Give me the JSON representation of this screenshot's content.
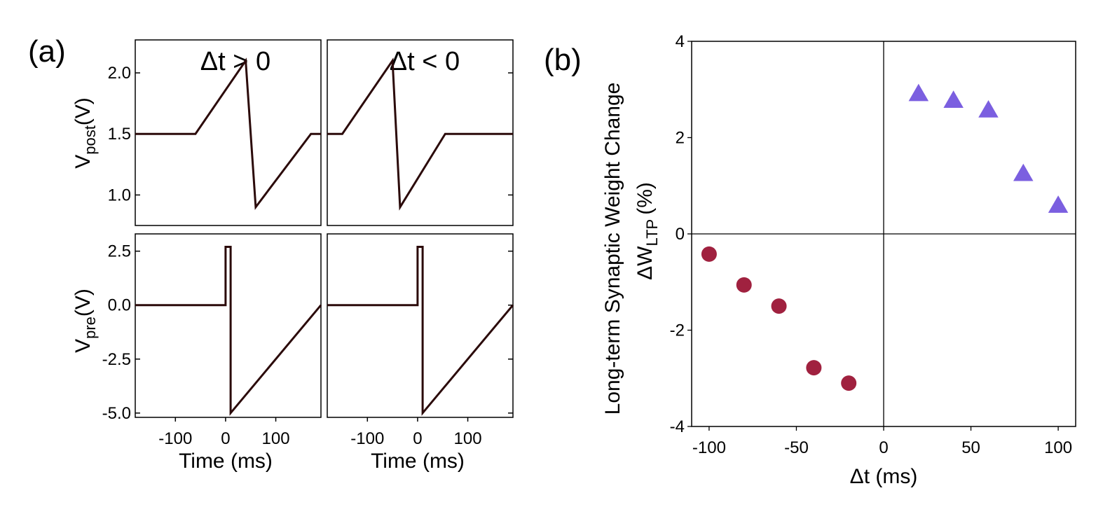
{
  "figure": {
    "panel_a_label": "(a)",
    "panel_b_label": "(b)"
  },
  "chart_data": [
    {
      "id": "a-top-left",
      "type": "line",
      "title": "Δt > 0",
      "ylabel_main": "V",
      "ylabel_sub": "post",
      "ylabel_unit": "(V)",
      "yticks": [
        1.0,
        1.5,
        2.0
      ],
      "ytick_labels": [
        "1.0",
        "1.5",
        "2.0"
      ],
      "xlim": [
        -180,
        190
      ],
      "ylim": [
        0.75,
        2.27
      ],
      "series": [
        {
          "x": [
            -180,
            -60,
            40,
            60,
            170,
            190
          ],
          "y": [
            1.5,
            1.5,
            2.1,
            0.9,
            1.5,
            1.5
          ]
        }
      ]
    },
    {
      "id": "a-top-right",
      "type": "line",
      "title": "Δt < 0",
      "yticks": [
        1.0,
        1.5,
        2.0
      ],
      "xlim": [
        -180,
        190
      ],
      "ylim": [
        0.75,
        2.27
      ],
      "series": [
        {
          "x": [
            -180,
            -150,
            -50,
            -35,
            55,
            190
          ],
          "y": [
            1.5,
            1.5,
            2.1,
            0.9,
            1.5,
            1.5
          ]
        }
      ]
    },
    {
      "id": "a-bottom-left",
      "type": "line",
      "ylabel_main": "V",
      "ylabel_sub": "pre",
      "ylabel_unit": "(V)",
      "xlabel": "Time (ms)",
      "yticks": [
        -5.0,
        -2.5,
        0.0,
        2.5
      ],
      "ytick_labels": [
        "-5.0",
        "-2.5",
        "0.0",
        "2.5"
      ],
      "xticks": [
        -100,
        0,
        100
      ],
      "xtick_labels": [
        "-100",
        "0",
        "100"
      ],
      "xlim": [
        -180,
        190
      ],
      "ylim": [
        -5.2,
        3.3
      ],
      "series": [
        {
          "x": [
            -180,
            0,
            0,
            10,
            10,
            190
          ],
          "y": [
            0,
            0,
            2.7,
            2.7,
            -5.0,
            0
          ]
        }
      ]
    },
    {
      "id": "a-bottom-right",
      "type": "line",
      "xlabel": "Time (ms)",
      "yticks": [
        -5.0,
        -2.5,
        0.0,
        2.5
      ],
      "xticks": [
        -100,
        0,
        100
      ],
      "xtick_labels": [
        "-100",
        "0",
        "100"
      ],
      "xlim": [
        -180,
        190
      ],
      "ylim": [
        -5.2,
        3.3
      ],
      "series": [
        {
          "x": [
            -180,
            0,
            0,
            10,
            10,
            190
          ],
          "y": [
            0,
            0,
            2.7,
            2.7,
            -5.0,
            0
          ]
        }
      ]
    },
    {
      "id": "b",
      "type": "scatter",
      "ylabel_line1": "Long-term Synaptic Weight Change",
      "ylabel_line2_main": "ΔW",
      "ylabel_line2_sub": "LTP",
      "ylabel_line2_unit": "(%)",
      "xlabel": "Δt (ms)",
      "xlim": [
        -110,
        110
      ],
      "ylim": [
        -4,
        4
      ],
      "xticks": [
        -100,
        -50,
        0,
        50,
        100
      ],
      "xtick_labels": [
        "-100",
        "-50",
        "0",
        "50",
        "100"
      ],
      "yticks": [
        -4,
        -2,
        0,
        2,
        4
      ],
      "ytick_labels": [
        "-4",
        "-2",
        "0",
        "2",
        "4"
      ],
      "series": [
        {
          "marker": "circle",
          "color": "#a0213f",
          "x": [
            -100,
            -80,
            -60,
            -40,
            -20
          ],
          "y": [
            -0.42,
            -1.06,
            -1.5,
            -2.78,
            -3.1
          ]
        },
        {
          "marker": "triangle",
          "color": "#7b5fe0",
          "x": [
            20,
            40,
            60,
            80,
            100
          ],
          "y": [
            2.9,
            2.76,
            2.56,
            1.24,
            0.58
          ]
        }
      ]
    }
  ]
}
